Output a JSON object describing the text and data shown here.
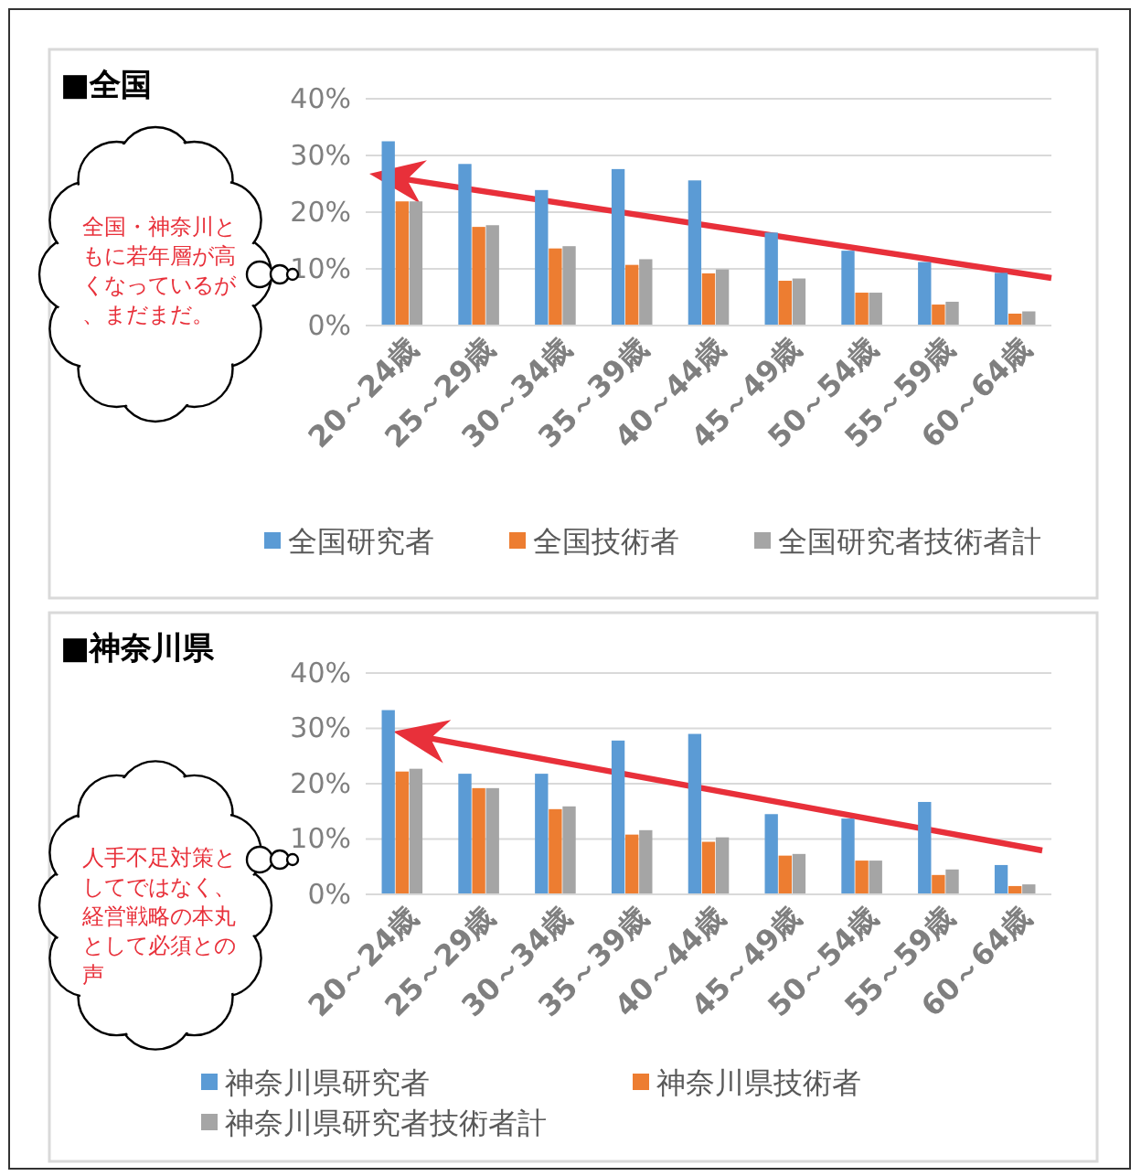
{
  "chart_data": [
    {
      "type": "bar",
      "title": "■全国",
      "categories": [
        "20～24歳",
        "25～29歳",
        "30～34歳",
        "35～39歳",
        "40～44歳",
        "45～49歳",
        "50～54歳",
        "55～59歳",
        "60～64歳"
      ],
      "series": [
        {
          "name": "全国研究者",
          "color": "#5b9bd5",
          "values": [
            32.5,
            28.5,
            23.9,
            27.6,
            25.6,
            16.4,
            13.2,
            11.2,
            9.3
          ]
        },
        {
          "name": "全国技術者",
          "color": "#ed7d31",
          "values": [
            21.9,
            17.4,
            13.6,
            10.7,
            9.2,
            7.9,
            5.8,
            3.7,
            2.1
          ]
        },
        {
          "name": "全国研究者技術者計",
          "color": "#a5a5a5",
          "values": [
            21.9,
            17.7,
            14.0,
            11.7,
            9.9,
            8.3,
            5.8,
            4.2,
            2.5
          ]
        }
      ],
      "ylim": [
        0,
        40
      ],
      "yticks": [
        {
          "value": 0,
          "label": "0%"
        },
        {
          "value": 10,
          "label": "10%"
        },
        {
          "value": 20,
          "label": "20%"
        },
        {
          "value": 30,
          "label": "30%"
        },
        {
          "value": 40,
          "label": "40%"
        }
      ],
      "grid": "y",
      "legend": "bottom",
      "annotations": [
        "全国・神奈川ともに若年層が高くなっているが、まだまだ。"
      ]
    },
    {
      "type": "bar",
      "title": "■神奈川県",
      "categories": [
        "20～24歳",
        "25～29歳",
        "30～34歳",
        "35～39歳",
        "40～44歳",
        "45～49歳",
        "50～54歳",
        "55～59歳",
        "60～64歳"
      ],
      "series": [
        {
          "name": "神奈川県研究者",
          "color": "#5b9bd5",
          "values": [
            33.3,
            21.8,
            21.8,
            27.8,
            29.0,
            14.5,
            13.7,
            16.7,
            5.3
          ]
        },
        {
          "name": "神奈川県技術者",
          "color": "#ed7d31",
          "values": [
            22.2,
            19.2,
            15.4,
            10.8,
            9.5,
            7.0,
            6.1,
            3.5,
            1.5
          ]
        },
        {
          "name": "神奈川県研究者技術者計",
          "color": "#a5a5a5",
          "values": [
            22.7,
            19.2,
            15.9,
            11.6,
            10.3,
            7.3,
            6.1,
            4.5,
            1.8
          ]
        }
      ],
      "ylim": [
        0,
        40
      ],
      "yticks": [
        {
          "value": 0,
          "label": "0%"
        },
        {
          "value": 10,
          "label": "10%"
        },
        {
          "value": 20,
          "label": "20%"
        },
        {
          "value": 30,
          "label": "30%"
        },
        {
          "value": 40,
          "label": "40%"
        }
      ],
      "grid": "y",
      "legend": "bottom",
      "annotations": [
        "人手不足対策としてではなく、経営戦略の本丸として必須との声"
      ]
    }
  ]
}
